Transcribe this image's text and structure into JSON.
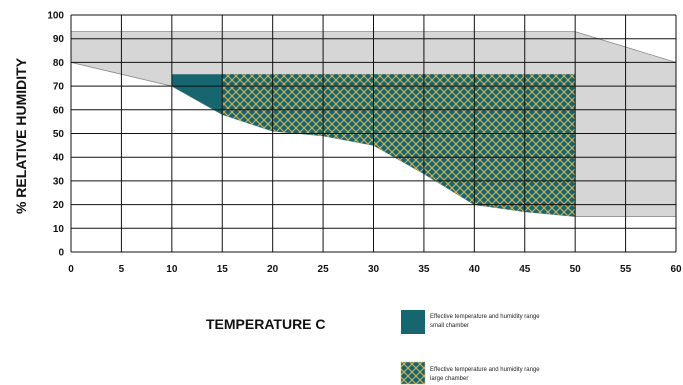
{
  "chart_data": {
    "type": "area",
    "xlabel": "TEMPERATURE C",
    "ylabel": "% RELATIVE HUMIDITY",
    "xlim": [
      0,
      60
    ],
    "ylim": [
      0,
      100
    ],
    "x_ticks": [
      0,
      5,
      10,
      15,
      20,
      25,
      30,
      35,
      40,
      45,
      50,
      55,
      60
    ],
    "y_ticks": [
      0,
      10,
      20,
      30,
      40,
      50,
      60,
      70,
      80,
      90,
      100
    ],
    "x_tick_labels": [
      "0",
      "5",
      "10",
      "15",
      "20",
      "25",
      "30",
      "35",
      "40",
      "45",
      "50",
      "55",
      "60"
    ],
    "y_tick_labels": [
      "0",
      "10",
      "20",
      "30",
      "40",
      "50",
      "60",
      "70",
      "80",
      "90",
      "100"
    ],
    "grid": true,
    "series": [
      {
        "name": "Effective temperature and humidity range small chamber",
        "fill": "#17666f",
        "upper": [
          [
            10,
            75
          ],
          [
            50,
            75
          ]
        ],
        "lower": [
          [
            10,
            70
          ],
          [
            15,
            58
          ],
          [
            20,
            51
          ],
          [
            25,
            49
          ],
          [
            30,
            45
          ],
          [
            35,
            33
          ],
          [
            40,
            20
          ],
          [
            45,
            17
          ],
          [
            50,
            15
          ]
        ]
      },
      {
        "name": "Effective temperature and humidity range large chamber",
        "fill": "#17666f",
        "pattern_color": "#d8b558",
        "upper": [
          [
            15,
            75
          ],
          [
            50,
            75
          ]
        ],
        "lower": [
          [
            15,
            58
          ],
          [
            20,
            51
          ],
          [
            25,
            49
          ],
          [
            30,
            45
          ],
          [
            35,
            33
          ],
          [
            40,
            20
          ],
          [
            45,
            17
          ],
          [
            50,
            15
          ]
        ]
      },
      {
        "fill": "#d6d6d6",
        "upper": [
          [
            0,
            93
          ],
          [
            50,
            93
          ],
          [
            60,
            80
          ]
        ],
        "lower": [
          [
            0,
            80
          ],
          [
            10,
            70
          ],
          [
            15,
            58
          ],
          [
            20,
            51
          ],
          [
            25,
            49
          ],
          [
            30,
            45
          ],
          [
            35,
            33
          ],
          [
            40,
            20
          ],
          [
            45,
            17
          ],
          [
            50,
            15
          ],
          [
            60,
            15
          ]
        ]
      }
    ],
    "legend": {
      "placement": "bottom-right",
      "entries": [
        "Effective temperature and humidity range small chamber",
        "Effective temperature and humidity range large chamber"
      ]
    },
    "colors": {
      "gray_region": "#d6d6d6",
      "small_chamber": "#17666f",
      "large_chamber_pattern": "#d8b558",
      "grid": "#111111"
    }
  }
}
